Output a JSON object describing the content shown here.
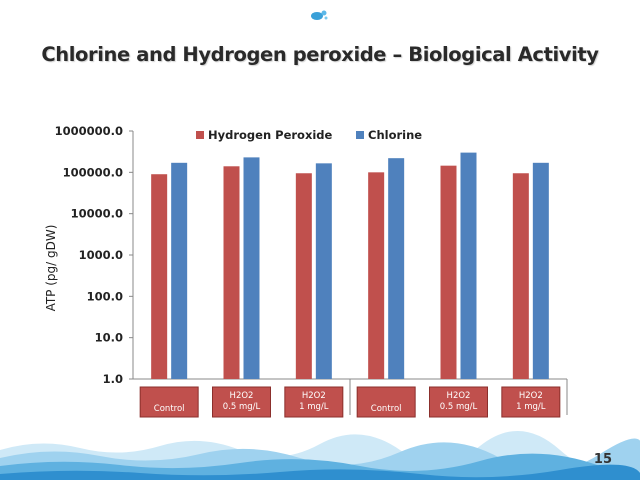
{
  "slide": {
    "title": "Chlorine and Hydrogen peroxide – Biological Activity",
    "page_number": "15",
    "logo_icon": "water-droplets-icon",
    "footer_decoration": "water-wave-icon"
  },
  "chart_data": {
    "type": "bar",
    "title": "",
    "xlabel": "",
    "ylabel": "ATP (pg/ gDW)",
    "scale": "log",
    "ylim": [
      1,
      1000000
    ],
    "yticks": [
      "1000000.0",
      "100000.0",
      "10000.0",
      "1000.0",
      "100.0",
      "10.0",
      "1.0"
    ],
    "categories": [
      [
        "Control"
      ],
      [
        "H2O2",
        "0.5 mg/L"
      ],
      [
        "H2O2",
        "1 mg/L"
      ],
      [
        "Control"
      ],
      [
        "H2O2",
        "0.5 mg/L"
      ],
      [
        "H2O2",
        "1 mg/L"
      ]
    ],
    "series": [
      {
        "name": "Hydrogen Peroxide",
        "color": "#c0504d",
        "values": [
          90000,
          140000,
          95000,
          100000,
          145000,
          95000
        ]
      },
      {
        "name": "Chlorine",
        "color": "#4f81bd",
        "values": [
          170000,
          230000,
          165000,
          220000,
          300000,
          170000
        ]
      }
    ],
    "legend": "top",
    "grid": false
  }
}
